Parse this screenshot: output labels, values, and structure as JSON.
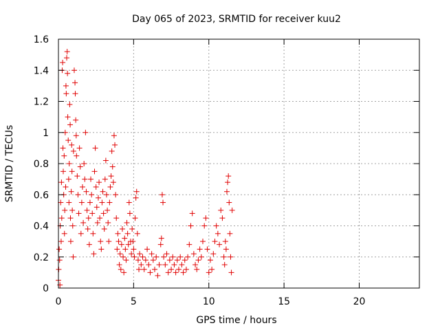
{
  "chart_data": {
    "type": "scatter",
    "title": "Day 065 of 2023, SRMTID for receiver kuu2",
    "xlabel": "GPS time / hours",
    "ylabel": "SRMTID / TECUs",
    "xlim": [
      0,
      24
    ],
    "ylim": [
      0,
      1.6
    ],
    "xticks": [
      0,
      5,
      10,
      15,
      20
    ],
    "yticks": [
      0,
      0.2,
      0.4,
      0.6,
      0.8,
      1,
      1.2,
      1.4,
      1.6
    ],
    "xtick_labels": [
      "0",
      "5",
      "10",
      "15",
      "20"
    ],
    "ytick_labels": [
      "0",
      "0.2",
      "0.4",
      "0.6",
      "0.8",
      "1",
      "1.2",
      "1.4",
      "1.6"
    ],
    "grid": true,
    "marker": "+",
    "color": "#e00000",
    "series": [
      {
        "points": [
          [
            0.0,
            0.05
          ],
          [
            0.02,
            0.12
          ],
          [
            0.05,
            0.25
          ],
          [
            0.08,
            0.18
          ],
          [
            0.1,
            0.02
          ],
          [
            0.12,
            0.4
          ],
          [
            0.15,
            0.55
          ],
          [
            0.18,
            0.3
          ],
          [
            0.2,
            0.68
          ],
          [
            0.22,
            0.45
          ],
          [
            0.25,
            1.4
          ],
          [
            0.28,
            1.45
          ],
          [
            0.3,
            0.9
          ],
          [
            0.32,
            0.75
          ],
          [
            0.35,
            0.6
          ],
          [
            0.38,
            0.85
          ],
          [
            0.4,
            0.35
          ],
          [
            0.42,
            0.5
          ],
          [
            0.45,
            1.0
          ],
          [
            0.48,
            0.65
          ],
          [
            0.5,
            1.3
          ],
          [
            0.52,
            1.25
          ],
          [
            0.55,
            1.48
          ],
          [
            0.58,
            1.52
          ],
          [
            0.6,
            1.38
          ],
          [
            0.62,
            1.1
          ],
          [
            0.65,
            0.95
          ],
          [
            0.68,
            0.7
          ],
          [
            0.7,
            0.55
          ],
          [
            0.72,
            0.8
          ],
          [
            0.75,
            1.18
          ],
          [
            0.78,
            1.05
          ],
          [
            0.8,
            0.45
          ],
          [
            0.82,
            0.3
          ],
          [
            0.85,
            0.62
          ],
          [
            0.88,
            0.92
          ],
          [
            0.9,
            0.75
          ],
          [
            0.92,
            0.5
          ],
          [
            0.95,
            0.4
          ],
          [
            0.98,
            0.2
          ],
          [
            1.0,
            0.88
          ],
          [
            1.05,
            1.4
          ],
          [
            1.1,
            1.32
          ],
          [
            1.12,
            1.25
          ],
          [
            1.15,
            1.08
          ],
          [
            1.18,
            0.98
          ],
          [
            1.2,
            0.85
          ],
          [
            1.25,
            0.72
          ],
          [
            1.3,
            0.6
          ],
          [
            1.35,
            0.48
          ],
          [
            1.4,
            0.9
          ],
          [
            1.45,
            0.78
          ],
          [
            1.5,
            0.35
          ],
          [
            1.55,
            0.55
          ],
          [
            1.6,
            0.65
          ],
          [
            1.65,
            0.42
          ],
          [
            1.7,
            0.8
          ],
          [
            1.75,
            0.7
          ],
          [
            1.8,
            1.0
          ],
          [
            1.85,
            0.62
          ],
          [
            1.9,
            0.5
          ],
          [
            1.95,
            0.38
          ],
          [
            2.0,
            0.45
          ],
          [
            2.05,
            0.28
          ],
          [
            2.1,
            0.55
          ],
          [
            2.15,
            0.7
          ],
          [
            2.2,
            0.6
          ],
          [
            2.25,
            0.48
          ],
          [
            2.3,
            0.35
          ],
          [
            2.35,
            0.22
          ],
          [
            2.4,
            0.75
          ],
          [
            2.45,
            0.9
          ],
          [
            2.5,
            0.65
          ],
          [
            2.55,
            0.52
          ],
          [
            2.6,
            0.42
          ],
          [
            2.65,
            0.58
          ],
          [
            2.7,
            0.68
          ],
          [
            2.75,
            0.45
          ],
          [
            2.8,
            0.3
          ],
          [
            2.85,
            0.25
          ],
          [
            2.9,
            0.55
          ],
          [
            2.95,
            0.62
          ],
          [
            3.0,
            0.48
          ],
          [
            3.05,
            0.38
          ],
          [
            3.1,
            0.7
          ],
          [
            3.15,
            0.82
          ],
          [
            3.2,
            0.6
          ],
          [
            3.25,
            0.5
          ],
          [
            3.3,
            0.42
          ],
          [
            3.35,
            0.3
          ],
          [
            3.4,
            0.55
          ],
          [
            3.45,
            0.65
          ],
          [
            3.5,
            0.72
          ],
          [
            3.55,
            0.88
          ],
          [
            3.6,
            0.78
          ],
          [
            3.65,
            0.68
          ],
          [
            3.7,
            0.98
          ],
          [
            3.75,
            0.92
          ],
          [
            3.8,
            0.6
          ],
          [
            3.85,
            0.45
          ],
          [
            3.9,
            0.25
          ],
          [
            3.95,
            0.35
          ],
          [
            4.0,
            0.3
          ],
          [
            4.05,
            0.15
          ],
          [
            4.1,
            0.22
          ],
          [
            4.15,
            0.12
          ],
          [
            4.2,
            0.28
          ],
          [
            4.25,
            0.38
          ],
          [
            4.3,
            0.2
          ],
          [
            4.35,
            0.1
          ],
          [
            4.4,
            0.32
          ],
          [
            4.45,
            0.25
          ],
          [
            4.5,
            0.18
          ],
          [
            4.55,
            0.42
          ],
          [
            4.6,
            0.35
          ],
          [
            4.65,
            0.28
          ],
          [
            4.7,
            0.55
          ],
          [
            4.75,
            0.48
          ],
          [
            4.8,
            0.3
          ],
          [
            4.85,
            0.22
          ],
          [
            4.9,
            0.38
          ],
          [
            4.95,
            0.3
          ],
          [
            5.0,
            0.25
          ],
          [
            5.05,
            0.2
          ],
          [
            5.1,
            0.45
          ],
          [
            5.15,
            0.58
          ],
          [
            5.2,
            0.62
          ],
          [
            5.25,
            0.35
          ],
          [
            5.3,
            0.18
          ],
          [
            5.35,
            0.12
          ],
          [
            5.4,
            0.22
          ],
          [
            5.5,
            0.15
          ],
          [
            5.6,
            0.2
          ],
          [
            5.7,
            0.12
          ],
          [
            5.8,
            0.18
          ],
          [
            5.9,
            0.25
          ],
          [
            6.0,
            0.15
          ],
          [
            6.1,
            0.1
          ],
          [
            6.2,
            0.22
          ],
          [
            6.3,
            0.18
          ],
          [
            6.4,
            0.12
          ],
          [
            6.5,
            0.2
          ],
          [
            6.6,
            0.08
          ],
          [
            6.7,
            0.15
          ],
          [
            6.8,
            0.28
          ],
          [
            6.85,
            0.32
          ],
          [
            6.9,
            0.6
          ],
          [
            6.95,
            0.55
          ],
          [
            7.0,
            0.2
          ],
          [
            7.1,
            0.15
          ],
          [
            7.2,
            0.22
          ],
          [
            7.3,
            0.1
          ],
          [
            7.4,
            0.18
          ],
          [
            7.5,
            0.12
          ],
          [
            7.6,
            0.2
          ],
          [
            7.7,
            0.15
          ],
          [
            7.8,
            0.1
          ],
          [
            7.9,
            0.18
          ],
          [
            8.0,
            0.12
          ],
          [
            8.1,
            0.2
          ],
          [
            8.2,
            0.15
          ],
          [
            8.3,
            0.1
          ],
          [
            8.4,
            0.18
          ],
          [
            8.5,
            0.12
          ],
          [
            8.6,
            0.2
          ],
          [
            8.7,
            0.28
          ],
          [
            8.8,
            0.4
          ],
          [
            8.9,
            0.48
          ],
          [
            9.0,
            0.22
          ],
          [
            9.1,
            0.15
          ],
          [
            9.2,
            0.12
          ],
          [
            9.3,
            0.18
          ],
          [
            9.4,
            0.25
          ],
          [
            9.5,
            0.2
          ],
          [
            9.6,
            0.3
          ],
          [
            9.7,
            0.4
          ],
          [
            9.8,
            0.45
          ],
          [
            9.9,
            0.25
          ],
          [
            10.0,
            0.1
          ],
          [
            10.1,
            0.18
          ],
          [
            10.2,
            0.12
          ],
          [
            10.3,
            0.22
          ],
          [
            10.4,
            0.3
          ],
          [
            10.5,
            0.4
          ],
          [
            10.6,
            0.35
          ],
          [
            10.7,
            0.28
          ],
          [
            10.8,
            0.5
          ],
          [
            10.9,
            0.45
          ],
          [
            11.0,
            0.2
          ],
          [
            11.05,
            0.15
          ],
          [
            11.1,
            0.3
          ],
          [
            11.15,
            0.25
          ],
          [
            11.2,
            0.62
          ],
          [
            11.25,
            0.68
          ],
          [
            11.3,
            0.72
          ],
          [
            11.35,
            0.55
          ],
          [
            11.4,
            0.35
          ],
          [
            11.45,
            0.2
          ],
          [
            11.5,
            0.1
          ],
          [
            11.55,
            0.5
          ]
        ]
      }
    ]
  }
}
